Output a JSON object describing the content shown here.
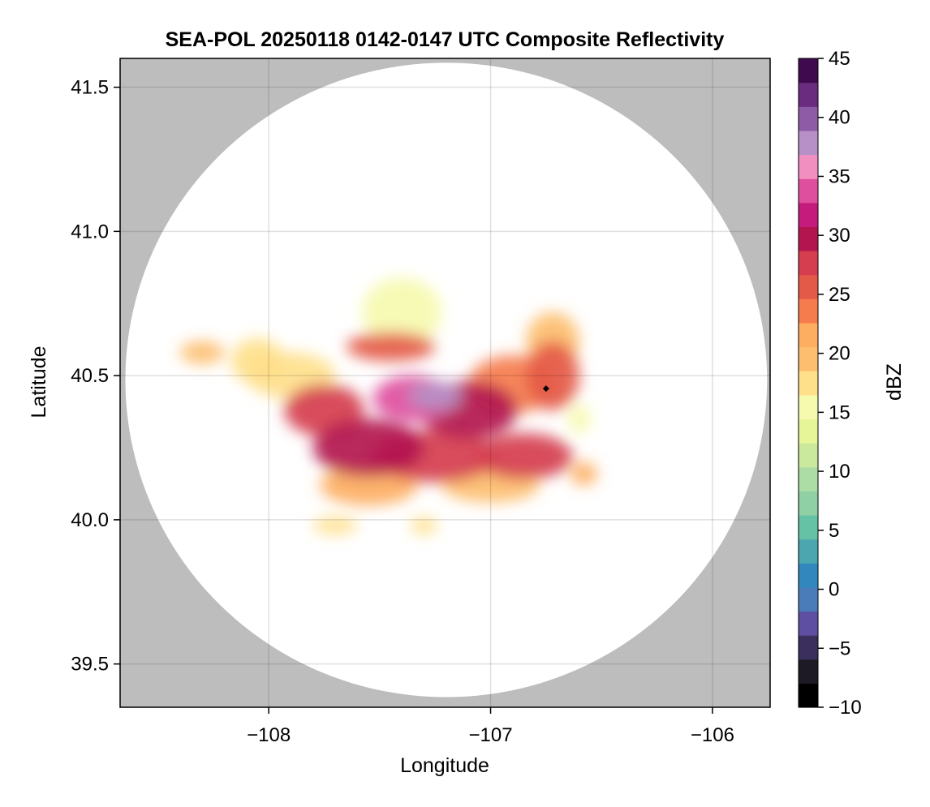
{
  "chart_data": {
    "type": "heatmap",
    "title": "SEA-POL 20250118 0142-0147 UTC Composite Reflectivity",
    "xlabel": "Longitude",
    "ylabel": "Latitude",
    "xlim": [
      -108.67,
      -105.74
    ],
    "ylim": [
      39.35,
      41.6
    ],
    "xticks": [
      -108,
      -107,
      -106
    ],
    "xtick_labels": [
      "−108",
      "−107",
      "−106"
    ],
    "yticks": [
      39.5,
      40.0,
      40.5,
      41.0,
      41.5
    ],
    "ytick_labels": [
      "39.5",
      "40.0",
      "40.5",
      "41.0",
      "41.5"
    ],
    "grid": true,
    "background_color": "#bdbdbd",
    "radar_domain": {
      "center_lon": -107.2,
      "center_lat": 40.485,
      "radius_lat_deg": 1.1
    },
    "radar_site": {
      "lon": -106.75,
      "lat": 40.455,
      "marker": "diamond",
      "color": "#000000"
    },
    "colorbar": {
      "label": "dBZ",
      "range": [
        -10,
        45
      ],
      "ticks": [
        -10,
        -5,
        0,
        5,
        10,
        15,
        20,
        25,
        30,
        35,
        40,
        45
      ],
      "tick_labels": [
        "−10",
        "−5",
        "0",
        "5",
        "10",
        "15",
        "20",
        "25",
        "30",
        "35",
        "40",
        "45"
      ],
      "colormap": "spectral_reversed",
      "colors": [
        "#000000",
        "#1d1a26",
        "#3b2f5e",
        "#5e4fa2",
        "#4b7cba",
        "#3288bd",
        "#4ba6b0",
        "#66c2a5",
        "#8fd1a4",
        "#abdda4",
        "#cbe99d",
        "#e6f598",
        "#f6faaf",
        "#fee08b",
        "#fdbe6f",
        "#fdae61",
        "#f57c4c",
        "#e45a48",
        "#d53e4f",
        "#b3164f",
        "#c51b7d",
        "#de4f9d",
        "#f08fc0",
        "#b690c6",
        "#8e5ba6",
        "#6a2c7e",
        "#3f0a4e"
      ]
    },
    "echoes": [
      {
        "lon": -107.25,
        "lat": 40.43,
        "r_lon": 0.12,
        "r_lat": 0.05,
        "dbz": 38
      },
      {
        "lon": -107.35,
        "lat": 40.42,
        "r_lon": 0.18,
        "r_lat": 0.08,
        "dbz": 33
      },
      {
        "lon": -107.1,
        "lat": 40.38,
        "r_lon": 0.22,
        "r_lat": 0.1,
        "dbz": 30
      },
      {
        "lon": -107.55,
        "lat": 40.25,
        "r_lon": 0.25,
        "r_lat": 0.1,
        "dbz": 29
      },
      {
        "lon": -107.25,
        "lat": 40.22,
        "r_lon": 0.28,
        "r_lat": 0.09,
        "dbz": 28
      },
      {
        "lon": -106.85,
        "lat": 40.22,
        "r_lon": 0.22,
        "r_lat": 0.08,
        "dbz": 28
      },
      {
        "lon": -107.75,
        "lat": 40.38,
        "r_lon": 0.18,
        "r_lat": 0.09,
        "dbz": 27
      },
      {
        "lon": -106.72,
        "lat": 40.5,
        "r_lon": 0.12,
        "r_lat": 0.12,
        "dbz": 26
      },
      {
        "lon": -106.9,
        "lat": 40.47,
        "r_lon": 0.2,
        "r_lat": 0.1,
        "dbz": 24
      },
      {
        "lon": -107.45,
        "lat": 40.6,
        "r_lon": 0.2,
        "r_lat": 0.05,
        "dbz": 26
      },
      {
        "lon": -107.55,
        "lat": 40.12,
        "r_lon": 0.22,
        "r_lat": 0.07,
        "dbz": 22
      },
      {
        "lon": -107.0,
        "lat": 40.12,
        "r_lon": 0.22,
        "r_lat": 0.06,
        "dbz": 19
      },
      {
        "lon": -107.9,
        "lat": 40.5,
        "r_lon": 0.2,
        "r_lat": 0.08,
        "dbz": 18
      },
      {
        "lon": -107.4,
        "lat": 40.72,
        "r_lon": 0.18,
        "r_lat": 0.12,
        "dbz": 16
      },
      {
        "lon": -106.72,
        "lat": 40.62,
        "r_lon": 0.12,
        "r_lat": 0.1,
        "dbz": 20
      },
      {
        "lon": -108.3,
        "lat": 40.58,
        "r_lon": 0.1,
        "r_lat": 0.04,
        "dbz": 20
      },
      {
        "lon": -108.05,
        "lat": 40.55,
        "r_lon": 0.12,
        "r_lat": 0.08,
        "dbz": 17
      },
      {
        "lon": -106.58,
        "lat": 40.16,
        "r_lon": 0.06,
        "r_lat": 0.04,
        "dbz": 21
      },
      {
        "lon": -106.6,
        "lat": 40.35,
        "r_lon": 0.05,
        "r_lat": 0.05,
        "dbz": 16
      },
      {
        "lon": -107.7,
        "lat": 39.98,
        "r_lon": 0.1,
        "r_lat": 0.03,
        "dbz": 18
      },
      {
        "lon": -107.3,
        "lat": 39.98,
        "r_lon": 0.06,
        "r_lat": 0.03,
        "dbz": 17
      }
    ]
  }
}
